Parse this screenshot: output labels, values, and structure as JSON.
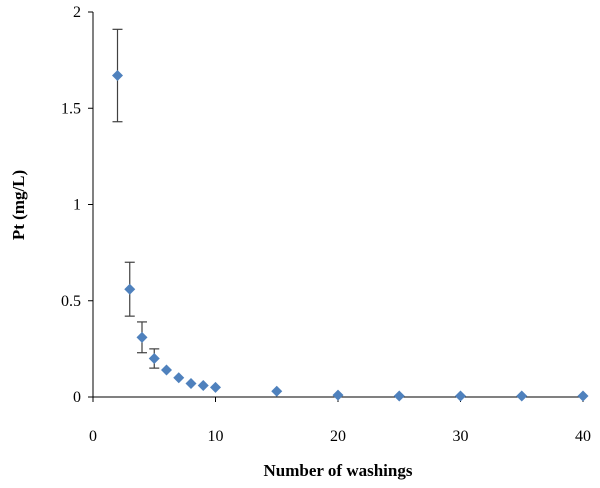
{
  "chart_data": {
    "type": "scatter",
    "title": "",
    "xlabel": "Number of washings",
    "ylabel": "Pt (mg/L)",
    "xlim": [
      0,
      40
    ],
    "ylim": [
      0,
      2
    ],
    "x_ticks": [
      0,
      10,
      20,
      30,
      40
    ],
    "y_ticks": [
      0,
      0.5,
      1,
      1.5,
      2
    ],
    "x_tick_labels": [
      "0",
      "10",
      "20",
      "30",
      "40"
    ],
    "y_tick_labels": [
      "0",
      "0.5",
      "1",
      "1.5",
      "2"
    ],
    "grid": false,
    "legend": "none",
    "marker": "diamond",
    "marker_color": "#4f81bd",
    "series": [
      {
        "x": [
          2,
          3,
          4,
          5,
          6,
          7,
          8,
          9,
          10,
          15,
          20,
          25,
          30,
          35,
          40
        ],
        "y": [
          1.67,
          0.56,
          0.31,
          0.2,
          0.14,
          0.1,
          0.07,
          0.06,
          0.05,
          0.03,
          0.01,
          0.005,
          0.005,
          0.005,
          0.005
        ],
        "error": [
          0.24,
          0.14,
          0.08,
          0.05,
          null,
          null,
          null,
          null,
          null,
          null,
          null,
          null,
          null,
          null,
          null
        ]
      }
    ]
  }
}
